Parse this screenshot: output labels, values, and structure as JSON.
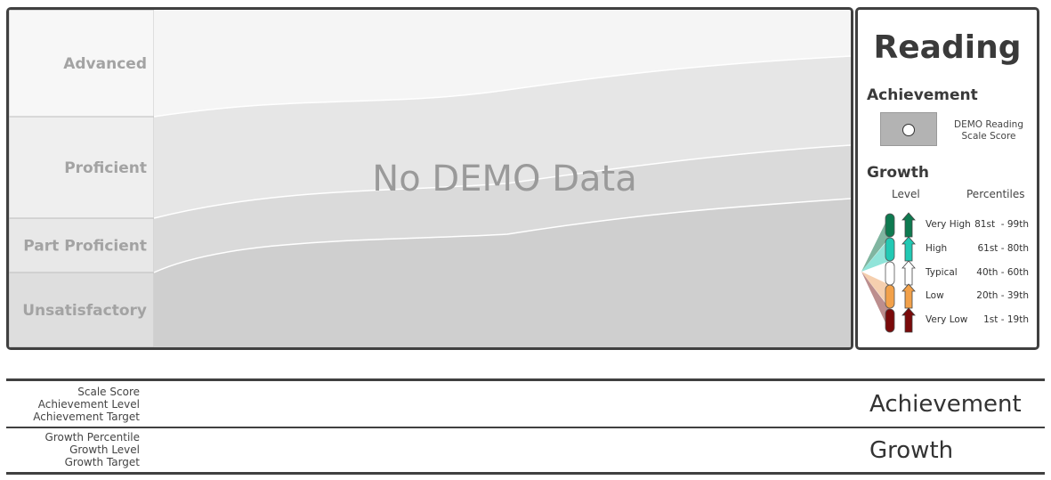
{
  "chart_data": {
    "type": "area",
    "categories": [
      "Advanced",
      "Proficient",
      "Part Proficient",
      "Unsatisfactory"
    ],
    "no_data_message": "No DEMO Data",
    "bands": [
      "#f5f5f5",
      "#e6e6e6",
      "#dadada",
      "#cfcfcf"
    ]
  },
  "legend": {
    "subject": "Reading",
    "achievement_heading": "Achievement",
    "achievement_label": "DEMO Reading Scale Score",
    "growth_heading": "Growth",
    "level_heading": "Level",
    "percentiles_heading": "Percentiles",
    "growth_levels": [
      {
        "name": "Very High",
        "range": "81st  - 99th",
        "color": "#0e7a50"
      },
      {
        "name": "High",
        "range": "61st - 80th",
        "color": "#22c9b4"
      },
      {
        "name": "Typical",
        "range": "40th - 60th",
        "color": "#ffffff"
      },
      {
        "name": "Low",
        "range": "20th - 39th",
        "color": "#f2a14a"
      },
      {
        "name": "Very Low",
        "range": "1st - 19th",
        "color": "#7a0a0a"
      }
    ]
  },
  "table": {
    "achievement_rows": [
      "Scale Score",
      "Achievement Level",
      "Achievement Target"
    ],
    "achievement_title": "Achievement",
    "growth_rows": [
      "Growth Percentile",
      "Growth Level",
      "Growth Target"
    ],
    "growth_title": "Growth"
  }
}
